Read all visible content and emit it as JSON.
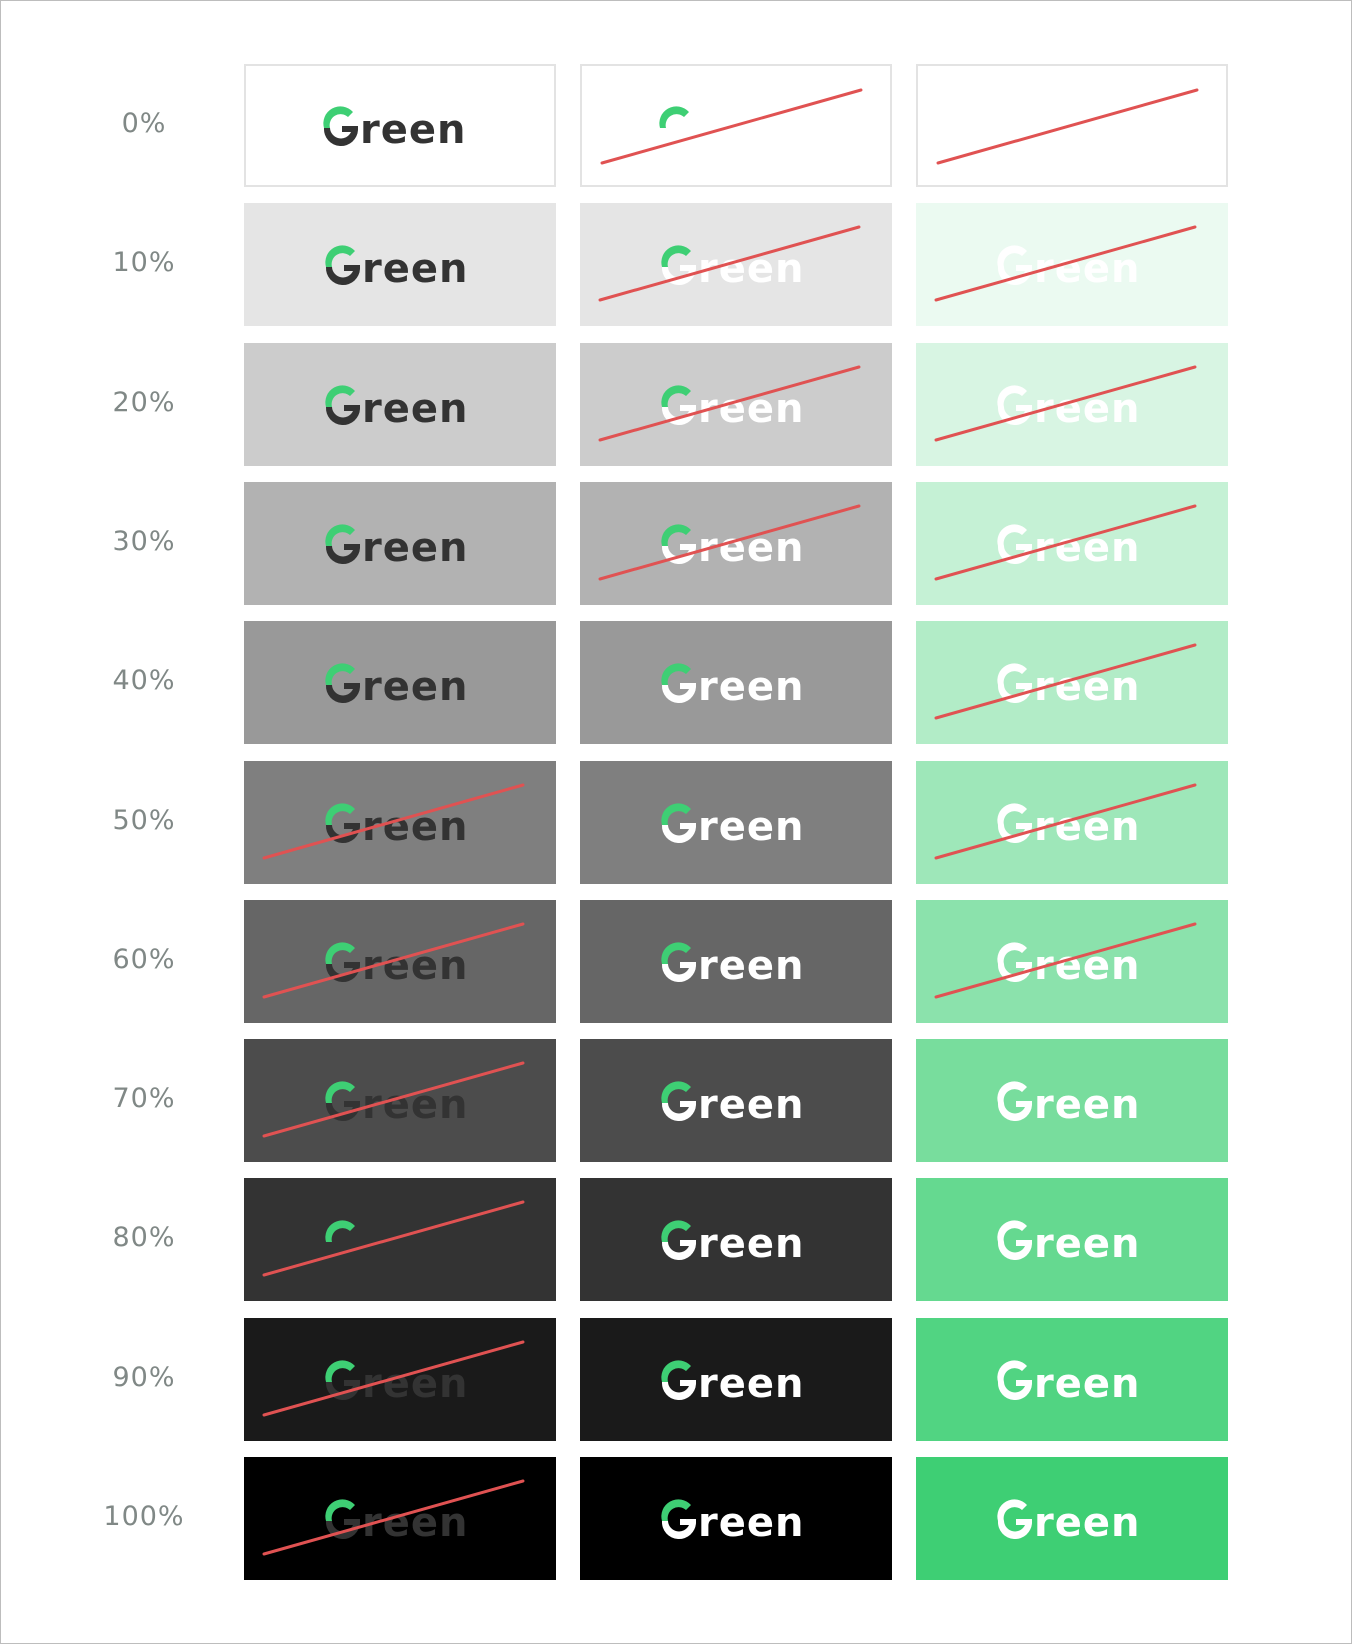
{
  "brand": {
    "wordmark": "Green",
    "colors": {
      "accent_green": "#3ecf74",
      "dark_text": "#333333",
      "light_text": "#ffffff",
      "strike_red": "#e05252",
      "label_gray": "#808886",
      "tile_border": "#e3e3e3"
    }
  },
  "columns": [
    {
      "id": "dark-logo-on-gray",
      "text_color": "#333333",
      "arc_color": "#3ecf74"
    },
    {
      "id": "light-logo-on-gray",
      "text_color": "#ffffff",
      "arc_color": "#3ecf74"
    },
    {
      "id": "white-logo-on-green",
      "text_color": "#ffffff",
      "arc_color": "#ffffff"
    }
  ],
  "rows": [
    {
      "label": "0%",
      "gray": "#ffffff",
      "green_opacity": 0.0,
      "strike": [
        false,
        true,
        true
      ],
      "hide_text": [
        false,
        true,
        true
      ]
    },
    {
      "label": "10%",
      "gray": "#e5e5e5",
      "green_opacity": 0.1,
      "strike": [
        false,
        true,
        true
      ],
      "hide_text": [
        false,
        false,
        false
      ]
    },
    {
      "label": "20%",
      "gray": "#cccccc",
      "green_opacity": 0.2,
      "strike": [
        false,
        true,
        true
      ],
      "hide_text": [
        false,
        false,
        false
      ]
    },
    {
      "label": "30%",
      "gray": "#b2b2b2",
      "green_opacity": 0.3,
      "strike": [
        false,
        true,
        true
      ],
      "hide_text": [
        false,
        false,
        false
      ]
    },
    {
      "label": "40%",
      "gray": "#999999",
      "green_opacity": 0.4,
      "strike": [
        false,
        false,
        true
      ],
      "hide_text": [
        false,
        false,
        false
      ]
    },
    {
      "label": "50%",
      "gray": "#7f7f7f",
      "green_opacity": 0.5,
      "strike": [
        true,
        false,
        true
      ],
      "hide_text": [
        false,
        false,
        false
      ]
    },
    {
      "label": "60%",
      "gray": "#666666",
      "green_opacity": 0.6,
      "strike": [
        true,
        false,
        true
      ],
      "hide_text": [
        false,
        false,
        false
      ]
    },
    {
      "label": "70%",
      "gray": "#4c4c4c",
      "green_opacity": 0.7,
      "strike": [
        true,
        false,
        false
      ],
      "hide_text": [
        false,
        false,
        false
      ]
    },
    {
      "label": "80%",
      "gray": "#333333",
      "green_opacity": 0.8,
      "strike": [
        true,
        false,
        false
      ],
      "hide_text": [
        true,
        false,
        false
      ]
    },
    {
      "label": "90%",
      "gray": "#1a1a1a",
      "green_opacity": 0.9,
      "strike": [
        true,
        false,
        false
      ],
      "hide_text": [
        false,
        false,
        false
      ]
    },
    {
      "label": "100%",
      "gray": "#000000",
      "green_opacity": 1.0,
      "strike": [
        true,
        false,
        false
      ],
      "hide_text": [
        false,
        false,
        false
      ]
    }
  ]
}
